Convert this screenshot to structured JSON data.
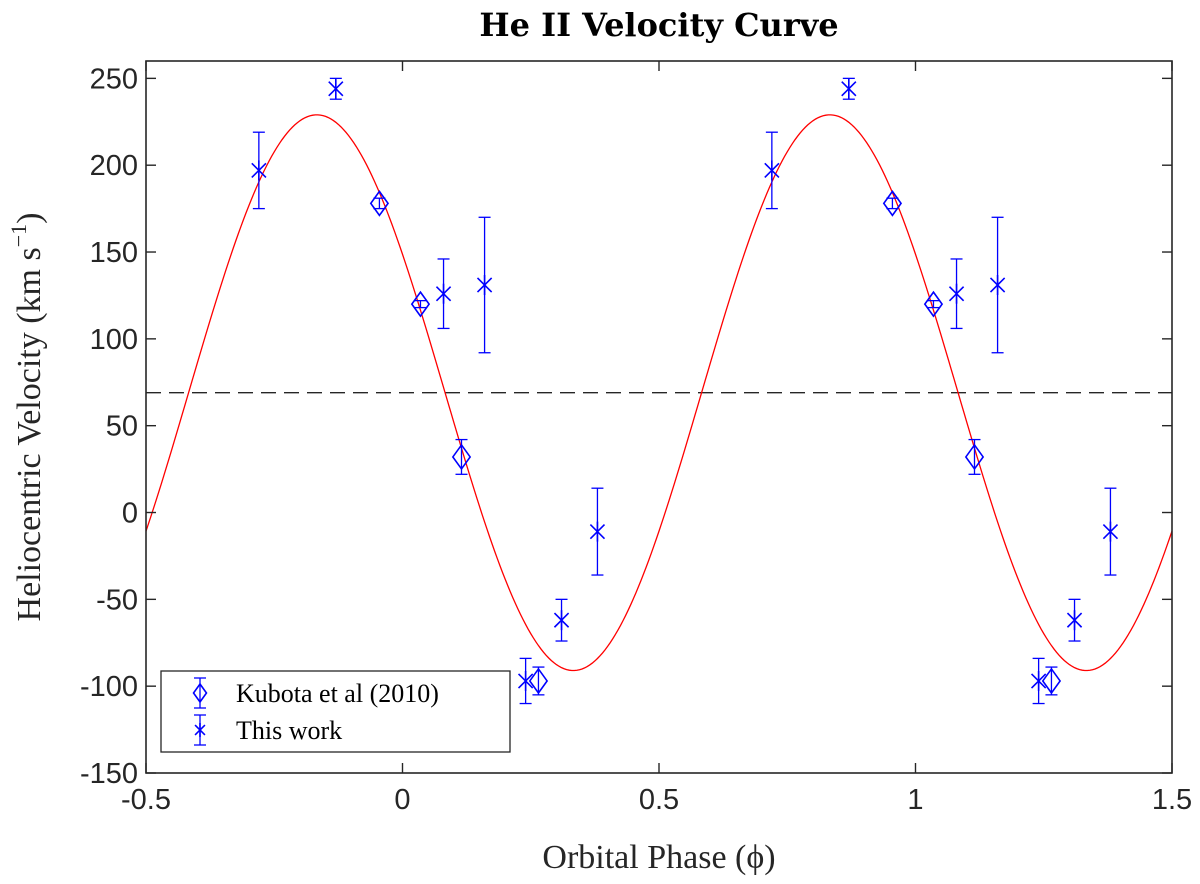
{
  "chart_data": {
    "type": "scatter",
    "title": "He II Velocity Curve",
    "xlabel": "Orbital Phase (ϕ)",
    "ylabel_main": "Heliocentric Velocity (km s",
    "ylabel_exp": "−1",
    "ylabel_close": ")",
    "xlim": [
      -0.5,
      1.5
    ],
    "ylim": [
      -150,
      260
    ],
    "xticks": [
      -0.5,
      0,
      0.5,
      1,
      1.5
    ],
    "xtick_labels": [
      "-0.5",
      "0",
      "0.5",
      "1",
      "1.5"
    ],
    "yticks": [
      -150,
      -100,
      -50,
      0,
      50,
      100,
      150,
      200,
      250
    ],
    "ytick_labels": [
      "-150",
      "-100",
      "-50",
      "0",
      "50",
      "100",
      "150",
      "200",
      "250"
    ],
    "fit": {
      "name": "sinusoid fit",
      "gamma": 69,
      "amplitude": 160,
      "phase_of_max": -0.167,
      "color": "#ff0000"
    },
    "systemic_velocity": 69,
    "series": [
      {
        "name": "Kubota et al (2010)",
        "marker": "diamond",
        "color": "#0000ff",
        "points": [
          {
            "x": -0.045,
            "y": 178,
            "err": 3
          },
          {
            "x": 0.035,
            "y": 120,
            "err": 2
          },
          {
            "x": 0.115,
            "y": 32,
            "err": 10
          },
          {
            "x": 0.265,
            "y": -97,
            "err": 8
          },
          {
            "x": 0.955,
            "y": 178,
            "err": 3
          },
          {
            "x": 1.035,
            "y": 120,
            "err": 2
          },
          {
            "x": 1.115,
            "y": 32,
            "err": 10
          },
          {
            "x": 1.265,
            "y": -97,
            "err": 8
          }
        ]
      },
      {
        "name": "This work",
        "marker": "asterisk",
        "color": "#0000ff",
        "points": [
          {
            "x": -0.28,
            "y": 197,
            "err": 22
          },
          {
            "x": -0.13,
            "y": 244,
            "err": 6
          },
          {
            "x": 0.08,
            "y": 126,
            "err": 20
          },
          {
            "x": 0.16,
            "y": 131,
            "err": 39
          },
          {
            "x": 0.24,
            "y": -97,
            "err": 13
          },
          {
            "x": 0.31,
            "y": -62,
            "err": 12
          },
          {
            "x": 0.38,
            "y": -11,
            "err": 25
          },
          {
            "x": 0.72,
            "y": 197,
            "err": 22
          },
          {
            "x": 0.87,
            "y": 244,
            "err": 6
          },
          {
            "x": 1.08,
            "y": 126,
            "err": 20
          },
          {
            "x": 1.16,
            "y": 131,
            "err": 39
          },
          {
            "x": 1.24,
            "y": -97,
            "err": 13
          },
          {
            "x": 1.31,
            "y": -62,
            "err": 12
          },
          {
            "x": 1.38,
            "y": -11,
            "err": 25
          }
        ]
      }
    ],
    "legend": {
      "position": "bottom-left",
      "entries": [
        "Kubota et al (2010)",
        "This work"
      ]
    },
    "grid": false
  }
}
